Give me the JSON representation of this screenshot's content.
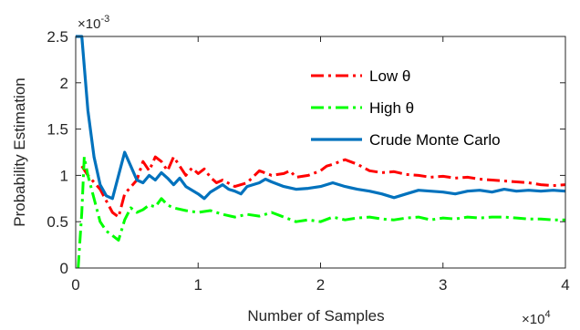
{
  "chart_data": {
    "type": "line",
    "xlabel": "Number of Samples",
    "ylabel": "Probability Estimation",
    "x_exponent": "×10",
    "x_exponent_power": "4",
    "y_exponent": "×10",
    "y_exponent_power": "-3",
    "xlim": [
      0,
      40000
    ],
    "ylim": [
      0,
      2.5
    ],
    "xticks": [
      0,
      10000,
      20000,
      30000,
      40000
    ],
    "xtick_labels": [
      "0",
      "1",
      "2",
      "3",
      "4"
    ],
    "yticks": [
      0,
      0.5,
      1,
      1.5,
      2,
      2.5
    ],
    "ytick_labels": [
      "0",
      "0.5",
      "1",
      "1.5",
      "2",
      "2.5"
    ],
    "grid": false,
    "legend_position": "top-right",
    "series": [
      {
        "name": "Low θ",
        "color": "#ff0000",
        "style": "dashdot",
        "points": [
          [
            500,
            1.1
          ],
          [
            1000,
            1.0
          ],
          [
            2000,
            0.85
          ],
          [
            3000,
            0.6
          ],
          [
            3500,
            0.55
          ],
          [
            4000,
            0.8
          ],
          [
            5000,
            0.95
          ],
          [
            5500,
            1.15
          ],
          [
            6000,
            1.05
          ],
          [
            6500,
            1.2
          ],
          [
            7000,
            1.15
          ],
          [
            7500,
            1.05
          ],
          [
            8000,
            1.2
          ],
          [
            8500,
            1.1
          ],
          [
            9000,
            1.0
          ],
          [
            9500,
            1.08
          ],
          [
            10000,
            1.02
          ],
          [
            10500,
            1.07
          ],
          [
            11000,
            0.98
          ],
          [
            11500,
            0.92
          ],
          [
            12000,
            0.95
          ],
          [
            13000,
            0.88
          ],
          [
            14000,
            0.92
          ],
          [
            15000,
            1.05
          ],
          [
            16000,
            1.0
          ],
          [
            17000,
            1.02
          ],
          [
            17500,
            1.05
          ],
          [
            18000,
            0.98
          ],
          [
            19000,
            1.0
          ],
          [
            20000,
            1.05
          ],
          [
            20500,
            1.1
          ],
          [
            21000,
            1.12
          ],
          [
            22000,
            1.17
          ],
          [
            23000,
            1.12
          ],
          [
            24000,
            1.05
          ],
          [
            25000,
            1.03
          ],
          [
            26000,
            1.04
          ],
          [
            27000,
            1.01
          ],
          [
            28000,
            1.0
          ],
          [
            29000,
            0.98
          ],
          [
            30000,
            0.99
          ],
          [
            31000,
            0.97
          ],
          [
            32000,
            0.98
          ],
          [
            33000,
            0.96
          ],
          [
            34000,
            0.95
          ],
          [
            35000,
            0.94
          ],
          [
            36000,
            0.93
          ],
          [
            37000,
            0.92
          ],
          [
            38000,
            0.9
          ],
          [
            39000,
            0.89
          ],
          [
            40000,
            0.9
          ]
        ]
      },
      {
        "name": "High θ",
        "color": "#00ff00",
        "style": "dashdot",
        "points": [
          [
            200,
            0.0
          ],
          [
            500,
            0.6
          ],
          [
            700,
            1.2
          ],
          [
            1000,
            1.0
          ],
          [
            1500,
            0.75
          ],
          [
            2000,
            0.5
          ],
          [
            2500,
            0.4
          ],
          [
            3000,
            0.35
          ],
          [
            3500,
            0.3
          ],
          [
            4000,
            0.52
          ],
          [
            4500,
            0.65
          ],
          [
            5000,
            0.6
          ],
          [
            5500,
            0.63
          ],
          [
            6000,
            0.68
          ],
          [
            6500,
            0.66
          ],
          [
            7000,
            0.75
          ],
          [
            7500,
            0.68
          ],
          [
            8000,
            0.65
          ],
          [
            9000,
            0.62
          ],
          [
            10000,
            0.6
          ],
          [
            11000,
            0.62
          ],
          [
            12000,
            0.58
          ],
          [
            13000,
            0.55
          ],
          [
            14000,
            0.58
          ],
          [
            15000,
            0.56
          ],
          [
            16000,
            0.6
          ],
          [
            17000,
            0.55
          ],
          [
            18000,
            0.5
          ],
          [
            19000,
            0.52
          ],
          [
            20000,
            0.5
          ],
          [
            21000,
            0.55
          ],
          [
            22000,
            0.52
          ],
          [
            23000,
            0.54
          ],
          [
            24000,
            0.55
          ],
          [
            25000,
            0.53
          ],
          [
            26000,
            0.52
          ],
          [
            27000,
            0.54
          ],
          [
            28000,
            0.55
          ],
          [
            29000,
            0.52
          ],
          [
            30000,
            0.54
          ],
          [
            31000,
            0.53
          ],
          [
            32000,
            0.55
          ],
          [
            33000,
            0.54
          ],
          [
            34000,
            0.55
          ],
          [
            35000,
            0.55
          ],
          [
            36000,
            0.54
          ],
          [
            37000,
            0.53
          ],
          [
            38000,
            0.53
          ],
          [
            39000,
            0.52
          ],
          [
            40000,
            0.52
          ]
        ]
      },
      {
        "name": "Crude Monte Carlo",
        "color": "#0072bd",
        "style": "solid",
        "points": [
          [
            0,
            2.5
          ],
          [
            500,
            2.5
          ],
          [
            1000,
            1.7
          ],
          [
            1500,
            1.2
          ],
          [
            2000,
            0.9
          ],
          [
            2500,
            0.78
          ],
          [
            3000,
            0.75
          ],
          [
            3500,
            1.0
          ],
          [
            4000,
            1.25
          ],
          [
            4500,
            1.1
          ],
          [
            5000,
            0.95
          ],
          [
            5500,
            0.92
          ],
          [
            6000,
            1.0
          ],
          [
            6500,
            0.95
          ],
          [
            7000,
            1.03
          ],
          [
            7500,
            0.97
          ],
          [
            8000,
            0.9
          ],
          [
            8500,
            0.97
          ],
          [
            9000,
            0.88
          ],
          [
            10000,
            0.8
          ],
          [
            10500,
            0.75
          ],
          [
            11000,
            0.82
          ],
          [
            12000,
            0.9
          ],
          [
            12500,
            0.85
          ],
          [
            13000,
            0.83
          ],
          [
            13500,
            0.8
          ],
          [
            14000,
            0.88
          ],
          [
            15000,
            0.92
          ],
          [
            15500,
            0.96
          ],
          [
            16000,
            0.93
          ],
          [
            17000,
            0.88
          ],
          [
            18000,
            0.85
          ],
          [
            19000,
            0.86
          ],
          [
            20000,
            0.88
          ],
          [
            21000,
            0.92
          ],
          [
            22000,
            0.88
          ],
          [
            23000,
            0.85
          ],
          [
            24000,
            0.83
          ],
          [
            25000,
            0.8
          ],
          [
            26000,
            0.76
          ],
          [
            27000,
            0.8
          ],
          [
            28000,
            0.84
          ],
          [
            29000,
            0.83
          ],
          [
            30000,
            0.82
          ],
          [
            31000,
            0.8
          ],
          [
            32000,
            0.83
          ],
          [
            33000,
            0.84
          ],
          [
            34000,
            0.82
          ],
          [
            35000,
            0.85
          ],
          [
            36000,
            0.83
          ],
          [
            37000,
            0.84
          ],
          [
            38000,
            0.83
          ],
          [
            39000,
            0.84
          ],
          [
            40000,
            0.83
          ]
        ]
      }
    ]
  }
}
